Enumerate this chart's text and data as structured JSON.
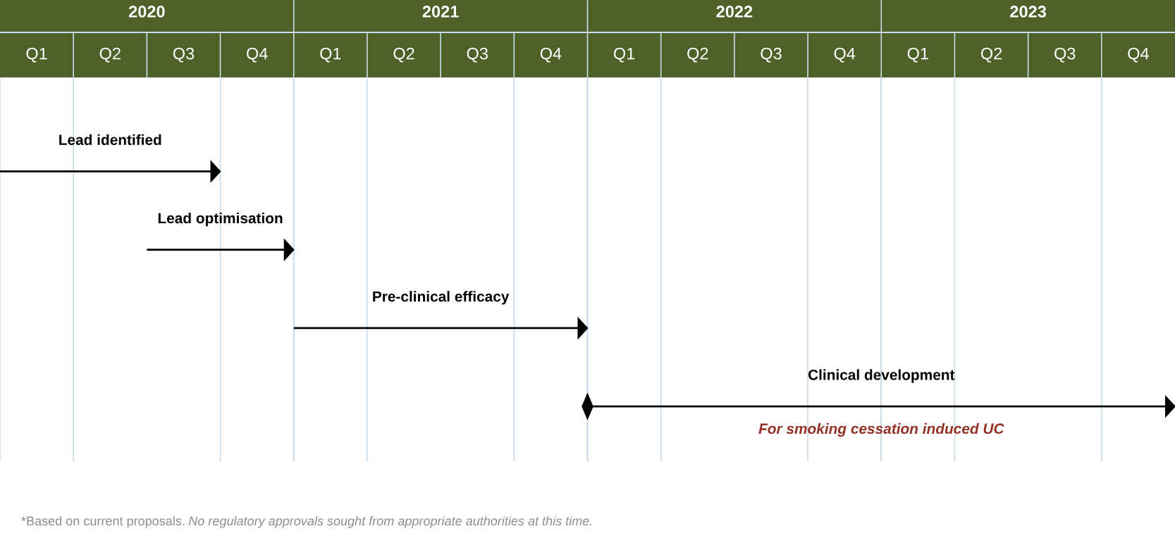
{
  "chart_data": {
    "type": "bar",
    "orientation": "horizontal",
    "categories": [
      null,
      null,
      null,
      null
    ],
    "base": [
      2019.5,
      2020,
      2020.5,
      2021.5
    ],
    "values": [
      0.75,
      0.5,
      1,
      2
    ],
    "color": "#000000",
    "xlim": [
      2019.5,
      2023.5
    ],
    "xticks": [
      2020,
      2021,
      2022,
      2023,
      {
        "value": 2019.75,
        "label": null
      },
      {
        "value": 2020.25,
        "label": null
      },
      {
        "value": 2020.5,
        "label": null
      },
      {
        "value": 2020.75,
        "label": null
      },
      {
        "value": 2021.25,
        "label": null
      },
      {
        "value": 2021.5,
        "label": null
      },
      {
        "value": 2021.75,
        "label": null
      },
      {
        "value": 2022.25,
        "label": null
      },
      {
        "value": 2022.5,
        "label": null
      },
      {
        "value": 2022.75,
        "label": null
      },
      {
        "value": 2023.25,
        "label": null
      }
    ],
    "grid": "x",
    "tick_labels": "x",
    "annotations": [
      "Q1",
      "Q2",
      "Q3",
      "Q4",
      "Q1",
      "Q2",
      "Q3",
      "Q4",
      "Q1",
      "Q2",
      "Q3",
      "Q4",
      "Q1",
      "Q2",
      "Q3",
      "Q4",
      "Lead identified",
      "Lead optimisation",
      "Pre-clinical efficacy",
      "Clinical development",
      "For smoking cessation induced UC",
      "*Based on current proposals.",
      "No regulatory approvals sought from appropriate authorities at this time."
    ]
  }
}
